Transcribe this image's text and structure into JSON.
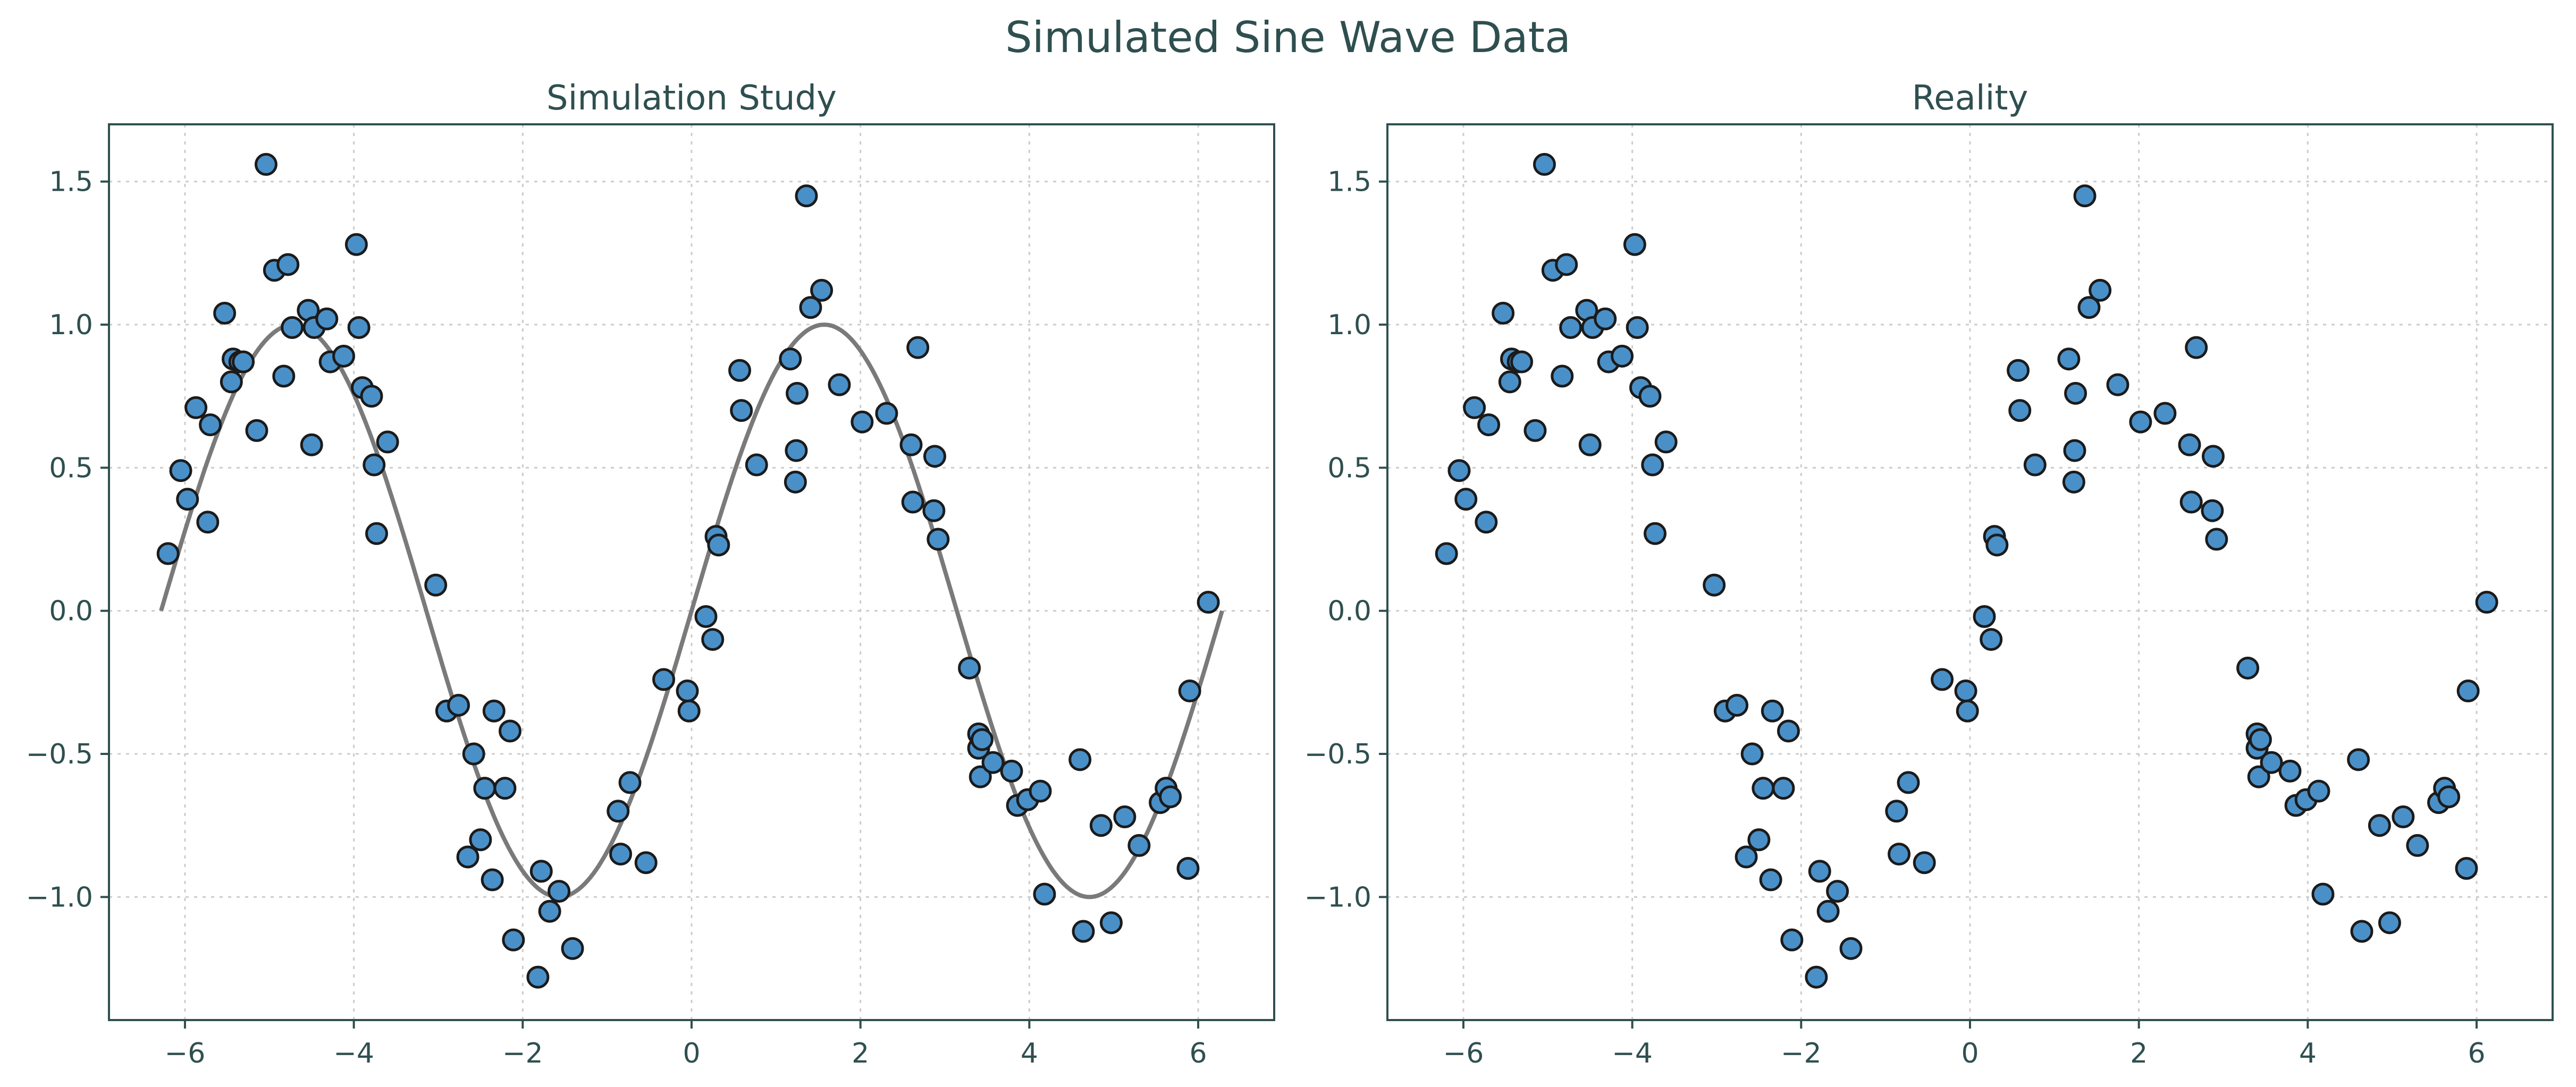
{
  "figure": {
    "title": "Simulated Sine Wave Data"
  },
  "colors": {
    "text": "#2f4f4f",
    "marker_fill": "#4a90c8",
    "marker_edge": "#1b1b1b",
    "curve": "#7a7a7a",
    "grid": "#cccccc"
  },
  "chart_data": [
    {
      "type": "scatter",
      "title": "Simulation Study",
      "xlabel": "",
      "ylabel": "",
      "xlim": [
        -6.9,
        6.9
      ],
      "ylim": [
        -1.43,
        1.7
      ],
      "xticks": [
        -6,
        -4,
        -2,
        0,
        2,
        4,
        6
      ],
      "xtick_labels": [
        "−6",
        "−4",
        "−2",
        "0",
        "2",
        "4",
        "6"
      ],
      "yticks": [
        -1.0,
        -0.5,
        0.0,
        0.5,
        1.0,
        1.5
      ],
      "ytick_labels": [
        "−1.0",
        "−0.5",
        "0.0",
        "0.5",
        "1.0",
        "1.5"
      ],
      "grid": true,
      "curve": {
        "function": "sin(x)",
        "x_range": [
          -6.283,
          6.283
        ]
      },
      "points": {
        "x": [
          -6.2,
          -6.05,
          -5.97,
          -5.87,
          -5.73,
          -5.7,
          -5.53,
          -5.45,
          -5.43,
          -5.35,
          -5.31,
          -5.15,
          -5.04,
          -4.94,
          -4.83,
          -4.78,
          -4.73,
          -4.54,
          -4.5,
          -4.47,
          -4.32,
          -4.28,
          -4.12,
          -3.97,
          -3.94,
          -3.9,
          -3.79,
          -3.76,
          -3.73,
          -3.6,
          -3.03,
          -2.9,
          -2.76,
          -2.65,
          -2.58,
          -2.5,
          -2.45,
          -2.36,
          -2.34,
          -2.21,
          -2.15,
          -2.11,
          -1.82,
          -1.78,
          -1.68,
          -1.57,
          -1.41,
          -0.87,
          -0.84,
          -0.73,
          -0.54,
          -0.33,
          -0.05,
          -0.03,
          0.17,
          0.25,
          0.29,
          0.32,
          0.57,
          0.59,
          0.77,
          1.17,
          1.23,
          1.24,
          1.25,
          1.36,
          1.41,
          1.54,
          1.75,
          2.02,
          2.31,
          2.6,
          2.62,
          2.68,
          2.87,
          2.88,
          2.92,
          3.29,
          3.4,
          3.4,
          3.42,
          3.44,
          3.57,
          3.79,
          3.86,
          3.98,
          4.13,
          4.18,
          4.6,
          4.64,
          4.85,
          4.97,
          5.13,
          5.3,
          5.55,
          5.62,
          5.67,
          5.88,
          5.9,
          6.12
        ],
        "y": [
          0.2,
          0.49,
          0.39,
          0.71,
          0.31,
          0.65,
          1.04,
          0.8,
          0.88,
          0.87,
          0.87,
          0.63,
          1.56,
          1.19,
          0.82,
          1.21,
          0.99,
          1.05,
          0.58,
          0.99,
          1.02,
          0.87,
          0.89,
          1.28,
          0.99,
          0.78,
          0.75,
          0.51,
          0.27,
          0.59,
          0.09,
          -0.35,
          -0.33,
          -0.86,
          -0.5,
          -0.8,
          -0.62,
          -0.94,
          -0.35,
          -0.62,
          -0.42,
          -1.15,
          -1.28,
          -0.91,
          -1.05,
          -0.98,
          -1.18,
          -0.7,
          -0.85,
          -0.6,
          -0.88,
          -0.24,
          -0.28,
          -0.35,
          -0.02,
          -0.1,
          0.26,
          0.23,
          0.84,
          0.7,
          0.51,
          0.88,
          0.45,
          0.56,
          0.76,
          1.45,
          1.06,
          1.12,
          0.79,
          0.66,
          0.69,
          0.58,
          0.38,
          0.92,
          0.35,
          0.54,
          0.25,
          -0.2,
          -0.43,
          -0.48,
          -0.58,
          -0.45,
          -0.53,
          -0.56,
          -0.68,
          -0.66,
          -0.63,
          -0.99,
          -0.52,
          -1.12,
          -0.75,
          -1.09,
          -0.72,
          -0.82,
          -0.67,
          -0.62,
          -0.65,
          -0.9,
          -0.28,
          0.03
        ]
      }
    },
    {
      "type": "scatter",
      "title": "Reality",
      "xlabel": "",
      "ylabel": "",
      "xlim": [
        -6.9,
        6.9
      ],
      "ylim": [
        -1.43,
        1.7
      ],
      "xticks": [
        -6,
        -4,
        -2,
        0,
        2,
        4,
        6
      ],
      "xtick_labels": [
        "−6",
        "−4",
        "−2",
        "0",
        "2",
        "4",
        "6"
      ],
      "yticks": [
        -1.0,
        -0.5,
        0.0,
        0.5,
        1.0,
        1.5
      ],
      "ytick_labels": [
        "−1.0",
        "−0.5",
        "0.0",
        "0.5",
        "1.0",
        "1.5"
      ],
      "grid": true,
      "points": {
        "x": [
          -6.2,
          -6.05,
          -5.97,
          -5.87,
          -5.73,
          -5.7,
          -5.53,
          -5.45,
          -5.43,
          -5.35,
          -5.31,
          -5.15,
          -5.04,
          -4.94,
          -4.83,
          -4.78,
          -4.73,
          -4.54,
          -4.5,
          -4.47,
          -4.32,
          -4.28,
          -4.12,
          -3.97,
          -3.94,
          -3.9,
          -3.79,
          -3.76,
          -3.73,
          -3.6,
          -3.03,
          -2.9,
          -2.76,
          -2.65,
          -2.58,
          -2.5,
          -2.45,
          -2.36,
          -2.34,
          -2.21,
          -2.15,
          -2.11,
          -1.82,
          -1.78,
          -1.68,
          -1.57,
          -1.41,
          -0.87,
          -0.84,
          -0.73,
          -0.54,
          -0.33,
          -0.05,
          -0.03,
          0.17,
          0.25,
          0.29,
          0.32,
          0.57,
          0.59,
          0.77,
          1.17,
          1.23,
          1.24,
          1.25,
          1.36,
          1.41,
          1.54,
          1.75,
          2.02,
          2.31,
          2.6,
          2.62,
          2.68,
          2.87,
          2.88,
          2.92,
          3.29,
          3.4,
          3.4,
          3.42,
          3.44,
          3.57,
          3.79,
          3.86,
          3.98,
          4.13,
          4.18,
          4.6,
          4.64,
          4.85,
          4.97,
          5.13,
          5.3,
          5.55,
          5.62,
          5.67,
          5.88,
          5.9,
          6.12
        ],
        "y": [
          0.2,
          0.49,
          0.39,
          0.71,
          0.31,
          0.65,
          1.04,
          0.8,
          0.88,
          0.87,
          0.87,
          0.63,
          1.56,
          1.19,
          0.82,
          1.21,
          0.99,
          1.05,
          0.58,
          0.99,
          1.02,
          0.87,
          0.89,
          1.28,
          0.99,
          0.78,
          0.75,
          0.51,
          0.27,
          0.59,
          0.09,
          -0.35,
          -0.33,
          -0.86,
          -0.5,
          -0.8,
          -0.62,
          -0.94,
          -0.35,
          -0.62,
          -0.42,
          -1.15,
          -1.28,
          -0.91,
          -1.05,
          -0.98,
          -1.18,
          -0.7,
          -0.85,
          -0.6,
          -0.88,
          -0.24,
          -0.28,
          -0.35,
          -0.02,
          -0.1,
          0.26,
          0.23,
          0.84,
          0.7,
          0.51,
          0.88,
          0.45,
          0.56,
          0.76,
          1.45,
          1.06,
          1.12,
          0.79,
          0.66,
          0.69,
          0.58,
          0.38,
          0.92,
          0.35,
          0.54,
          0.25,
          -0.2,
          -0.43,
          -0.48,
          -0.58,
          -0.45,
          -0.53,
          -0.56,
          -0.68,
          -0.66,
          -0.63,
          -0.99,
          -0.52,
          -1.12,
          -0.75,
          -1.09,
          -0.72,
          -0.82,
          -0.67,
          -0.62,
          -0.65,
          -0.9,
          -0.28,
          0.03
        ]
      }
    }
  ]
}
